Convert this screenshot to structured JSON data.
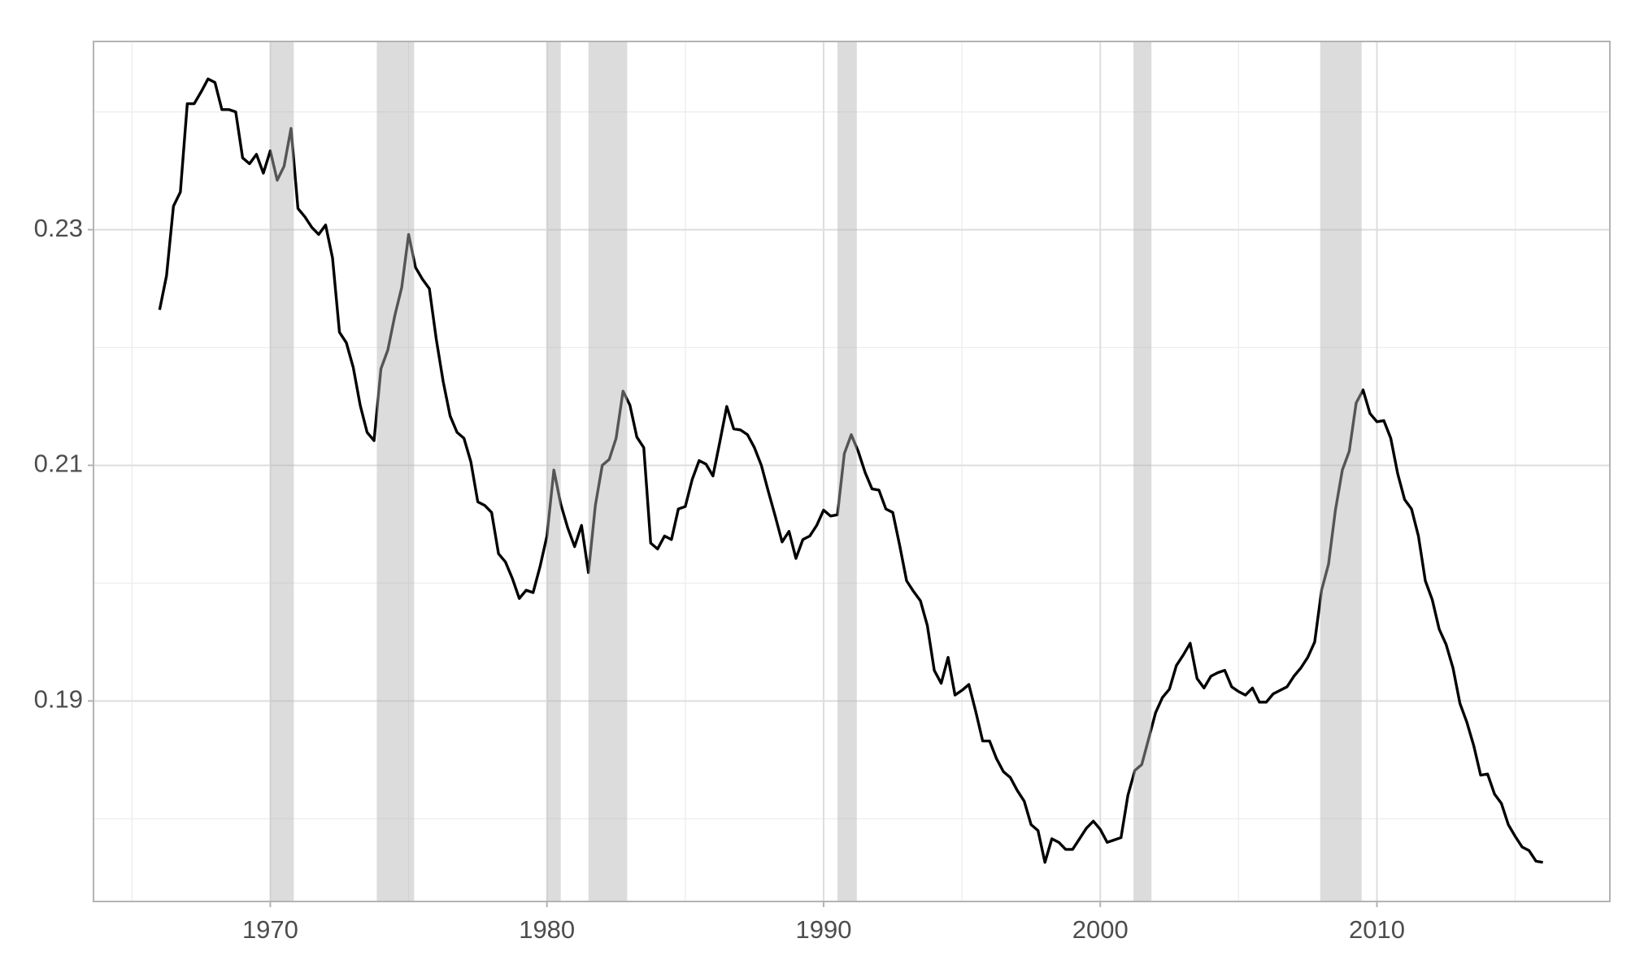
{
  "chart_data": {
    "type": "line",
    "x": [
      1966,
      1966.25,
      1966.5,
      1966.75,
      1967,
      1967.25,
      1967.5,
      1967.75,
      1968,
      1968.25,
      1968.5,
      1968.75,
      1969,
      1969.25,
      1969.5,
      1969.75,
      1970,
      1970.25,
      1970.5,
      1970.75,
      1971,
      1971.25,
      1971.5,
      1971.75,
      1972,
      1972.25,
      1972.5,
      1972.75,
      1973,
      1973.25,
      1973.5,
      1973.75,
      1974,
      1974.25,
      1974.5,
      1974.75,
      1975,
      1975.25,
      1975.5,
      1975.75,
      1976,
      1976.25,
      1976.5,
      1976.75,
      1977,
      1977.25,
      1977.5,
      1977.75,
      1978,
      1978.25,
      1978.5,
      1978.75,
      1979,
      1979.25,
      1979.5,
      1979.75,
      1980,
      1980.25,
      1980.5,
      1980.75,
      1981,
      1981.25,
      1981.5,
      1981.75,
      1982,
      1982.25,
      1982.5,
      1982.75,
      1983,
      1983.25,
      1983.5,
      1983.75,
      1984,
      1984.25,
      1984.5,
      1984.75,
      1985,
      1985.25,
      1985.5,
      1985.75,
      1986,
      1986.25,
      1986.5,
      1986.75,
      1987,
      1987.25,
      1987.5,
      1987.75,
      1988,
      1988.25,
      1988.5,
      1988.75,
      1989,
      1989.25,
      1989.5,
      1989.75,
      1990,
      1990.25,
      1990.5,
      1990.75,
      1991,
      1991.25,
      1991.5,
      1991.75,
      1992,
      1992.25,
      1992.5,
      1992.75,
      1993,
      1993.25,
      1993.5,
      1993.75,
      1994,
      1994.25,
      1994.5,
      1994.75,
      1995,
      1995.25,
      1995.5,
      1995.75,
      1996,
      1996.25,
      1996.5,
      1996.75,
      1997,
      1997.25,
      1997.5,
      1997.75,
      1998,
      1998.25,
      1998.5,
      1998.75,
      1999,
      1999.25,
      1999.5,
      1999.75,
      2000,
      2000.25,
      2000.5,
      2000.75,
      2001,
      2001.25,
      2001.5,
      2001.75,
      2002,
      2002.25,
      2002.5,
      2002.75,
      2003,
      2003.25,
      2003.5,
      2003.75,
      2004,
      2004.25,
      2004.5,
      2004.75,
      2005,
      2005.25,
      2005.5,
      2005.75,
      2006,
      2006.25,
      2006.5,
      2006.75,
      2007,
      2007.25,
      2007.5,
      2007.75,
      2008,
      2008.25,
      2008.5,
      2008.75,
      2009,
      2009.25,
      2009.5,
      2009.75,
      2010,
      2010.25,
      2010.5,
      2010.75,
      2011,
      2011.25,
      2011.5,
      2011.75,
      2012,
      2012.25,
      2012.5,
      2012.75,
      2013,
      2013.25,
      2013.5,
      2013.75,
      2014,
      2014.25,
      2014.5,
      2014.75,
      2015,
      2015.25,
      2015.5,
      2015.75,
      2016
    ],
    "series": [
      {
        "color": "#000000",
        "values": [
          0.2232,
          0.2261,
          0.232,
          0.2332,
          0.2407,
          0.2407,
          0.2417,
          0.2428,
          0.2425,
          0.2402,
          0.2402,
          0.24,
          0.2361,
          0.2356,
          0.2364,
          0.2348,
          0.2367,
          0.2342,
          0.2354,
          0.2386,
          0.2318,
          0.2311,
          0.2302,
          0.2296,
          0.2304,
          0.2276,
          0.2213,
          0.2204,
          0.2183,
          0.2151,
          0.2128,
          0.2121,
          0.2182,
          0.2198,
          0.2227,
          0.2251,
          0.2296,
          0.2268,
          0.2258,
          0.225,
          0.2207,
          0.2171,
          0.2142,
          0.2128,
          0.2123,
          0.2103,
          0.2069,
          0.2066,
          0.206,
          0.2025,
          0.2018,
          0.2004,
          0.1987,
          0.1994,
          0.1992,
          0.2014,
          0.204,
          0.2096,
          0.2067,
          0.2047,
          0.2031,
          0.2049,
          0.2009,
          0.2066,
          0.21,
          0.2105,
          0.2123,
          0.2163,
          0.2151,
          0.2124,
          0.2115,
          0.2034,
          0.2029,
          0.204,
          0.2037,
          0.2063,
          0.2065,
          0.2088,
          0.2104,
          0.2101,
          0.2091,
          0.212,
          0.215,
          0.2131,
          0.213,
          0.2126,
          0.2115,
          0.21,
          0.2078,
          0.2057,
          0.2035,
          0.2044,
          0.2021,
          0.2037,
          0.204,
          0.2049,
          0.2062,
          0.2057,
          0.2058,
          0.211,
          0.2126,
          0.2112,
          0.2094,
          0.208,
          0.2079,
          0.2063,
          0.206,
          0.2032,
          0.2002,
          0.1993,
          0.1985,
          0.1964,
          0.1926,
          0.1915,
          0.1937,
          0.1905,
          0.1909,
          0.1914,
          0.1891,
          0.1866,
          0.1866,
          0.1851,
          0.184,
          0.1835,
          0.1824,
          0.1815,
          0.1795,
          0.179,
          0.1763,
          0.1783,
          0.178,
          0.1774,
          0.1774,
          0.1783,
          0.1792,
          0.1798,
          0.1791,
          0.178,
          0.1782,
          0.1784,
          0.182,
          0.1841,
          0.1846,
          0.1868,
          0.189,
          0.1903,
          0.191,
          0.193,
          0.1939,
          0.1949,
          0.1919,
          0.1911,
          0.1921,
          0.1924,
          0.1926,
          0.1912,
          0.1908,
          0.1905,
          0.1911,
          0.1899,
          0.1899,
          0.1906,
          0.1909,
          0.1912,
          0.1921,
          0.1928,
          0.1937,
          0.195,
          0.1994,
          0.2016,
          0.2062,
          0.2096,
          0.2112,
          0.2153,
          0.2164,
          0.2144,
          0.2137,
          0.2138,
          0.2123,
          0.2093,
          0.2071,
          0.2063,
          0.204,
          0.2002,
          0.1986,
          0.1961,
          0.1948,
          0.1928,
          0.1898,
          0.1882,
          0.1862,
          0.1837,
          0.1838,
          0.1821,
          0.1813,
          0.1795,
          0.1785,
          0.1776,
          0.1773,
          0.1764,
          0.1763
        ]
      }
    ],
    "shaded_periods": [
      [
        1970.0,
        1970.85
      ],
      [
        1973.85,
        1975.2
      ],
      [
        1980.0,
        1980.5
      ],
      [
        1981.5,
        1982.9
      ],
      [
        1990.5,
        1991.2
      ],
      [
        2001.2,
        2001.85
      ],
      [
        2007.95,
        2009.45
      ]
    ],
    "shade_color": "#b5b5b5",
    "xlim": [
      1963.61,
      2018.42
    ],
    "xticks": [
      1970,
      1980,
      1990,
      2000,
      2010
    ],
    "ylim": [
      0.17298,
      0.24598
    ],
    "yticks": [
      0.19,
      0.21,
      0.23
    ],
    "x_minor_grid": [
      1965,
      1975,
      1985,
      1995,
      2005,
      2015
    ],
    "y_minor_grid": [
      0.18,
      0.2,
      0.22,
      0.24
    ],
    "grid": true
  }
}
